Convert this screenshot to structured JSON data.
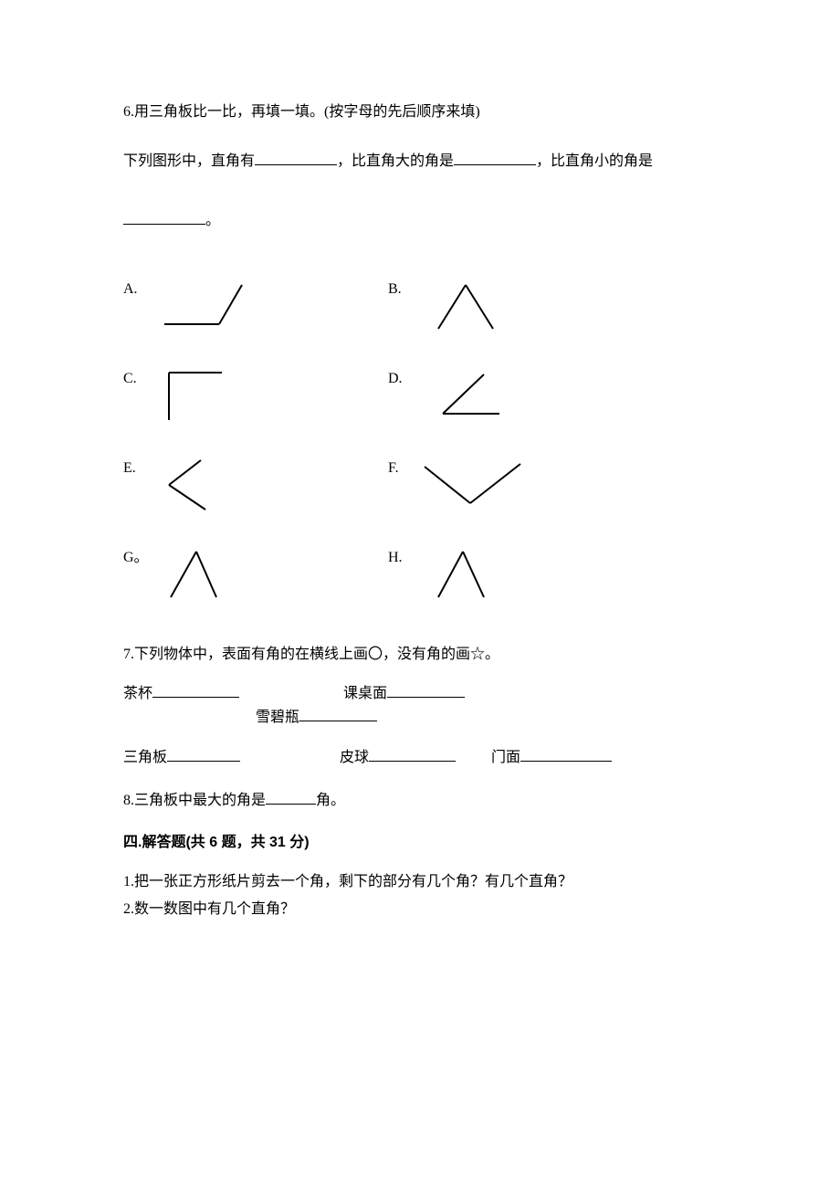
{
  "q6": {
    "prompt_line1": "6.用三角板比一比，再填一填。(按字母的先后顺序来填)",
    "prompt_line2_a": "下列图形中，直角有",
    "prompt_line2_b": "，比直角大的角是",
    "prompt_line2_c": "，比直角小的角是",
    "prompt_line3_end": "。",
    "options": {
      "A": {
        "label": "A.",
        "lines": [
          [
            15,
            55,
            75,
            55
          ],
          [
            75,
            55,
            100,
            12
          ]
        ]
      },
      "B": {
        "label": "B.",
        "lines": [
          [
            25,
            60,
            55,
            12
          ],
          [
            55,
            12,
            85,
            60
          ]
        ]
      },
      "C": {
        "label": "C.",
        "lines": [
          [
            20,
            10,
            20,
            62
          ],
          [
            20,
            10,
            78,
            10
          ]
        ]
      },
      "D": {
        "label": "D.",
        "lines": [
          [
            30,
            55,
            92,
            55
          ],
          [
            30,
            55,
            75,
            12
          ]
        ]
      },
      "E": {
        "label": "E.",
        "lines": [
          [
            55,
            8,
            20,
            35
          ],
          [
            20,
            35,
            60,
            62
          ]
        ]
      },
      "F": {
        "label": "F.",
        "lines": [
          [
            10,
            15,
            60,
            55
          ],
          [
            60,
            55,
            115,
            12
          ]
        ]
      },
      "G": {
        "label": "G。",
        "lines": [
          [
            22,
            60,
            50,
            10
          ],
          [
            50,
            10,
            72,
            60
          ]
        ]
      },
      "H": {
        "label": "H.",
        "lines": [
          [
            25,
            60,
            52,
            10
          ],
          [
            52,
            10,
            75,
            60
          ]
        ]
      }
    },
    "svg_stroke": "#000000",
    "svg_stroke_width": 2
  },
  "q7": {
    "prompt": "7.下列物体中，表面有角的在横线上画〇，没有角的画☆。",
    "row1": [
      {
        "label": "茶杯",
        "blank_w": 95
      },
      {
        "label": "课桌面",
        "blank_w": 85
      },
      {
        "label": "雪碧瓶",
        "blank_w": 85
      }
    ],
    "row1_gaps": [
      0,
      110,
      145
    ],
    "row2": [
      {
        "label": "三角板",
        "blank_w": 80
      },
      {
        "label": "皮球",
        "blank_w": 95
      },
      {
        "label": "门面",
        "blank_w": 100
      }
    ],
    "row2_gaps": [
      0,
      105,
      35
    ]
  },
  "q8": {
    "text_a": "8.三角板中最大的角是",
    "text_b": "角。",
    "blank_w": 55
  },
  "section4": {
    "header": "四.解答题(共 6 题，共 31 分)",
    "q1": "1.把一张正方形纸片剪去一个角，剩下的部分有几个角？有几个直角？",
    "q2": "2.数一数图中有几个直角？"
  }
}
